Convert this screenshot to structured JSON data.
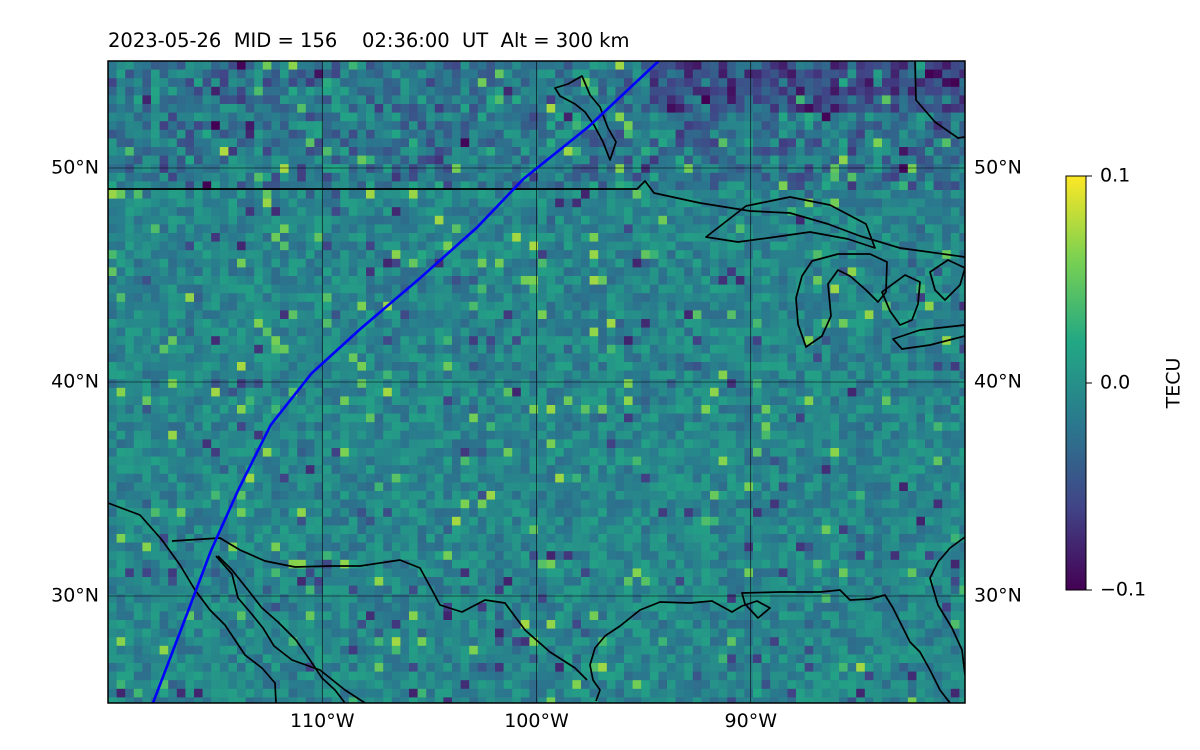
{
  "title": "2023-05-26  MID = 156    02:36:00  UT  Alt = 300 km",
  "map": {
    "lon_range": [
      -120,
      -80
    ],
    "lat_range": [
      25,
      55
    ],
    "lat_ticks": [
      {
        "value": 30,
        "label": "30°N"
      },
      {
        "value": 40,
        "label": "40°N"
      },
      {
        "value": 50,
        "label": "50°N"
      }
    ],
    "lon_ticks": [
      {
        "value": -110,
        "label": "110°W"
      },
      {
        "value": -100,
        "label": "100°W"
      },
      {
        "value": -90,
        "label": "90°W"
      }
    ],
    "gridlines": true,
    "field": "TEC perturbation",
    "field_mean_color": "#2a8a8a",
    "coastline_color": "#000000",
    "track_color": "#0000ff",
    "satellite_track": [
      [
        -117.9,
        25.0
      ],
      [
        -116.3,
        29.2
      ],
      [
        -115.2,
        32.1
      ],
      [
        -113.9,
        35.0
      ],
      [
        -112.4,
        38.0
      ],
      [
        -110.5,
        40.4
      ],
      [
        -108.2,
        42.5
      ],
      [
        -105.5,
        44.8
      ],
      [
        -102.8,
        47.2
      ],
      [
        -100.6,
        49.5
      ],
      [
        -97.6,
        51.9
      ],
      [
        -94.3,
        55.0
      ]
    ]
  },
  "colorbar": {
    "label": "TECU",
    "vmin": -0.1,
    "vmax": 0.1,
    "ticks": [
      {
        "value": 0.1,
        "label": "0.1"
      },
      {
        "value": 0.0,
        "label": "0.0"
      },
      {
        "value": -0.1,
        "label": "−0.1"
      }
    ],
    "colormap": "viridis",
    "colormap_stops": [
      "#440154",
      "#414487",
      "#2a788e",
      "#22a884",
      "#7ad151",
      "#fde725"
    ]
  }
}
